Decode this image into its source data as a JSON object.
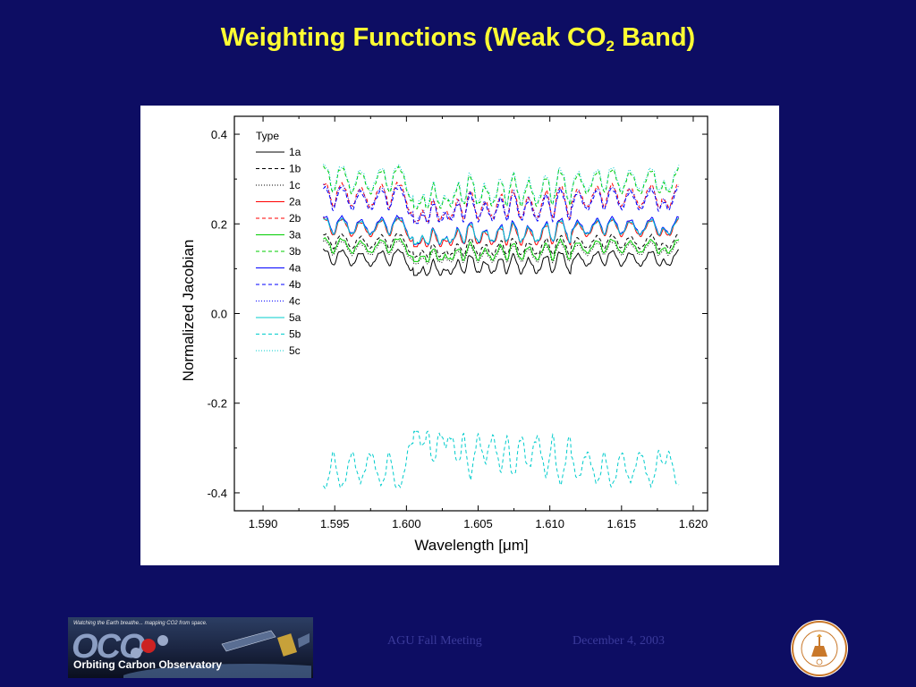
{
  "slide": {
    "title_main": "Weighting Functions (Weak CO",
    "title_sub": "2",
    "title_end": " Band)",
    "footer_conference": "AGU Fall Meeting",
    "footer_date": "December 4, 2003",
    "banner_tagline": "Watching the Earth breathe... mapping CO2 from space.",
    "banner_letters": "OCO",
    "banner_name": "Orbiting Carbon Observatory",
    "colors": {
      "background": "#0d0d63",
      "title": "#ffff33",
      "footer_text": "#3a3a9a",
      "plot_bg": "#ffffff"
    }
  },
  "chart_data": {
    "type": "line",
    "xlabel": "Wavelength [μm]",
    "ylabel": "Normalized Jacobian",
    "xlim": [
      1.588,
      1.621
    ],
    "ylim": [
      -0.44,
      0.44
    ],
    "xticks": [
      "1.590",
      "1.595",
      "1.600",
      "1.605",
      "1.610",
      "1.615",
      "1.620"
    ],
    "yticks": [
      "0.4",
      "0.2",
      "0.0",
      "-0.2",
      "-0.4"
    ],
    "legend_title": "Type",
    "legend_position": "top-left",
    "x_range": [
      1.5942,
      1.619
    ],
    "line_absorption_centers": [
      1.5949,
      1.5962,
      1.5975,
      1.5988,
      1.6002,
      1.6008,
      1.6015,
      1.6023,
      1.6031,
      1.604,
      1.605,
      1.606,
      1.607,
      1.608,
      1.6091,
      1.6102,
      1.6114,
      1.6126,
      1.6138,
      1.615,
      1.6163,
      1.6176,
      1.6183
    ],
    "series": [
      {
        "name": "1a",
        "color": "#000000",
        "dash": "solid",
        "baseline": 0.145,
        "depth": 0.05
      },
      {
        "name": "1b",
        "color": "#000000",
        "dash": "dashed",
        "baseline": 0.18,
        "depth": 0.045
      },
      {
        "name": "1c",
        "color": "#000000",
        "dash": "dotted",
        "baseline": 0.165,
        "depth": 0.045
      },
      {
        "name": "2a",
        "color": "#ff0000",
        "dash": "solid",
        "baseline": 0.215,
        "depth": 0.055
      },
      {
        "name": "2b",
        "color": "#ff0000",
        "dash": "dashed",
        "baseline": 0.295,
        "depth": 0.075
      },
      {
        "name": "3a",
        "color": "#00cc00",
        "dash": "solid",
        "baseline": 0.17,
        "depth": 0.045
      },
      {
        "name": "3b",
        "color": "#00cc00",
        "dash": "dashed",
        "baseline": 0.33,
        "depth": 0.08
      },
      {
        "name": "4a",
        "color": "#0000ff",
        "dash": "solid",
        "baseline": 0.22,
        "depth": 0.055
      },
      {
        "name": "4b",
        "color": "#0000ff",
        "dash": "dashed",
        "baseline": 0.285,
        "depth": 0.07
      },
      {
        "name": "4c",
        "color": "#0000ff",
        "dash": "dotted",
        "baseline": 0.29,
        "depth": 0.07
      },
      {
        "name": "5a",
        "color": "#00cccc",
        "dash": "solid",
        "baseline": 0.215,
        "depth": 0.05
      },
      {
        "name": "5b",
        "color": "#00cccc",
        "dash": "dashed",
        "baseline": -0.395,
        "depth": -0.11
      },
      {
        "name": "5c",
        "color": "#00cccc",
        "dash": "dotted",
        "baseline": 0.335,
        "depth": 0.08
      }
    ]
  }
}
